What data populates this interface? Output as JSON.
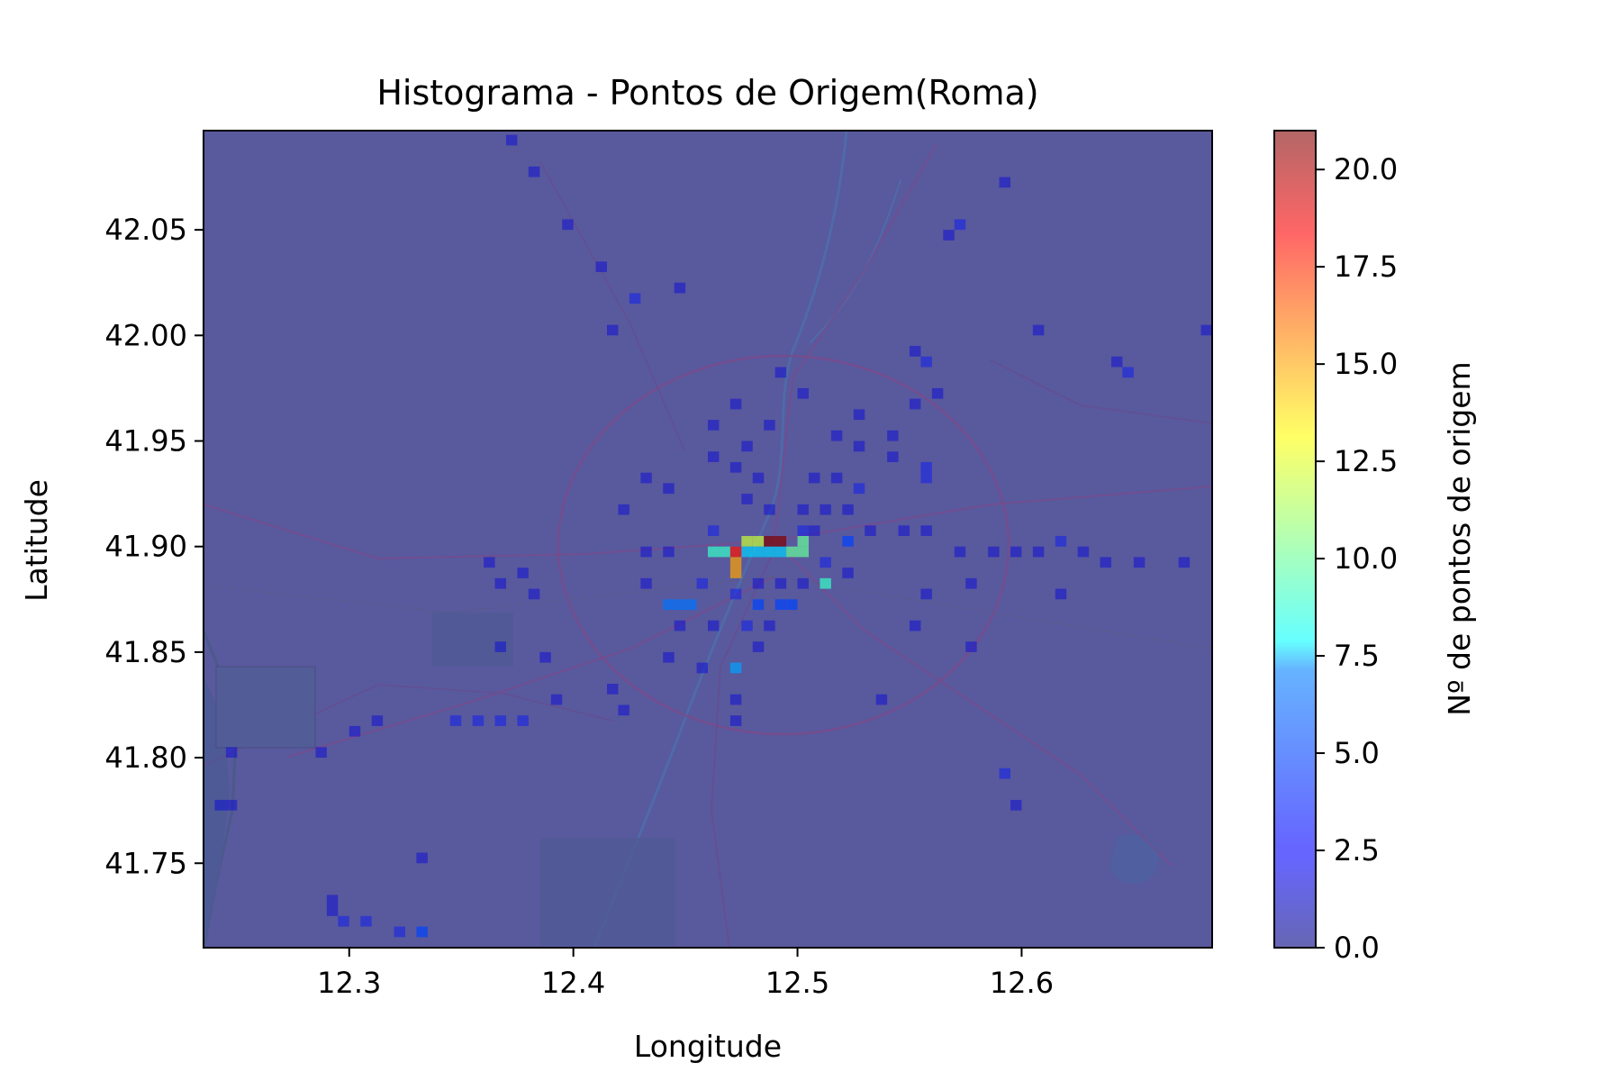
{
  "chart_data": {
    "type": "heatmap",
    "title": "Histograma - Pontos de Origem(Roma)",
    "xlabel": "Longitude",
    "ylabel": "Latitude",
    "xlim": [
      12.235,
      12.685
    ],
    "ylim": [
      41.71,
      42.097
    ],
    "x_ticks": [
      "12.3",
      "12.4",
      "12.5",
      "12.6"
    ],
    "y_ticks": [
      "41.75",
      "41.80",
      "41.85",
      "41.90",
      "41.95",
      "42.00",
      "42.05"
    ],
    "colorbar": {
      "label": "Nº de pontos de origem",
      "range": [
        0,
        21
      ],
      "ticks": [
        "0.0",
        "2.5",
        "5.0",
        "7.5",
        "10.0",
        "12.5",
        "15.0",
        "17.5",
        "20.0"
      ],
      "colormap": "jet"
    },
    "background": "map of Rome area",
    "grid": false,
    "bin_size": [
      0.005,
      0.005
    ],
    "cells": [
      [
        12.46,
        41.895,
        9
      ],
      [
        12.465,
        41.895,
        9
      ],
      [
        12.47,
        41.895,
        18
      ],
      [
        12.47,
        41.89,
        15
      ],
      [
        12.47,
        41.885,
        15
      ],
      [
        12.475,
        41.9,
        12
      ],
      [
        12.48,
        41.9,
        12
      ],
      [
        12.475,
        41.895,
        7
      ],
      [
        12.48,
        41.895,
        7
      ],
      [
        12.485,
        41.895,
        7
      ],
      [
        12.49,
        41.895,
        7
      ],
      [
        12.485,
        41.9,
        21
      ],
      [
        12.49,
        41.9,
        21
      ],
      [
        12.495,
        41.895,
        10
      ],
      [
        12.5,
        41.895,
        10
      ],
      [
        12.5,
        41.9,
        10
      ],
      [
        12.51,
        41.88,
        9
      ],
      [
        12.52,
        41.9,
        4
      ],
      [
        12.44,
        41.87,
        5
      ],
      [
        12.445,
        41.87,
        5
      ],
      [
        12.45,
        41.87,
        5
      ],
      [
        12.47,
        41.84,
        6
      ],
      [
        12.48,
        41.87,
        4
      ],
      [
        12.49,
        41.87,
        4
      ],
      [
        12.495,
        41.87,
        4
      ],
      [
        12.46,
        41.905,
        3
      ],
      [
        12.455,
        41.88,
        3
      ],
      [
        12.44,
        41.895,
        2
      ],
      [
        12.43,
        41.895,
        2
      ],
      [
        12.47,
        41.875,
        3
      ],
      [
        12.475,
        41.86,
        3
      ],
      [
        12.48,
        41.88,
        2
      ],
      [
        12.49,
        41.88,
        2
      ],
      [
        12.5,
        41.905,
        3
      ],
      [
        12.505,
        41.905,
        2
      ],
      [
        12.51,
        41.89,
        3
      ],
      [
        12.52,
        41.885,
        2
      ],
      [
        12.525,
        41.925,
        3
      ],
      [
        12.515,
        41.93,
        2
      ],
      [
        12.52,
        41.915,
        2
      ],
      [
        12.46,
        41.94,
        2
      ],
      [
        12.475,
        41.92,
        2
      ],
      [
        12.485,
        41.915,
        2
      ],
      [
        12.5,
        41.915,
        2
      ],
      [
        12.51,
        41.915,
        2
      ],
      [
        12.53,
        41.905,
        2
      ],
      [
        12.545,
        41.905,
        2
      ],
      [
        12.555,
        41.905,
        2
      ],
      [
        12.555,
        41.935,
        3
      ],
      [
        12.555,
        41.93,
        3
      ],
      [
        12.54,
        41.95,
        2
      ],
      [
        12.555,
        41.985,
        3
      ],
      [
        12.56,
        41.97,
        2
      ],
      [
        12.55,
        41.965,
        2
      ],
      [
        12.515,
        41.95,
        2
      ],
      [
        12.525,
        41.945,
        2
      ],
      [
        12.525,
        41.96,
        2
      ],
      [
        12.54,
        41.94,
        2
      ],
      [
        12.555,
        41.875,
        2
      ],
      [
        12.575,
        41.88,
        2
      ],
      [
        12.57,
        41.895,
        2
      ],
      [
        12.585,
        41.895,
        2
      ],
      [
        12.595,
        41.895,
        2
      ],
      [
        12.605,
        41.895,
        2
      ],
      [
        12.615,
        41.9,
        3
      ],
      [
        12.625,
        41.895,
        2
      ],
      [
        12.615,
        41.875,
        2
      ],
      [
        12.635,
        41.89,
        2
      ],
      [
        12.65,
        41.89,
        2
      ],
      [
        12.67,
        41.89,
        2
      ],
      [
        12.55,
        41.86,
        2
      ],
      [
        12.575,
        41.85,
        2
      ],
      [
        12.59,
        41.79,
        3
      ],
      [
        12.595,
        41.775,
        2
      ],
      [
        12.535,
        41.825,
        2
      ],
      [
        12.43,
        41.93,
        2
      ],
      [
        12.44,
        41.925,
        2
      ],
      [
        12.42,
        41.915,
        2
      ],
      [
        12.445,
        41.86,
        2
      ],
      [
        12.44,
        41.845,
        2
      ],
      [
        12.47,
        41.815,
        2
      ],
      [
        12.455,
        41.84,
        2
      ],
      [
        12.42,
        41.82,
        2
      ],
      [
        12.415,
        41.83,
        2
      ],
      [
        12.385,
        41.845,
        2
      ],
      [
        12.39,
        41.825,
        2
      ],
      [
        12.365,
        41.85,
        2
      ],
      [
        12.345,
        41.815,
        3
      ],
      [
        12.355,
        41.815,
        3
      ],
      [
        12.365,
        41.815,
        3
      ],
      [
        12.375,
        41.815,
        3
      ],
      [
        12.31,
        41.815,
        2
      ],
      [
        12.3,
        41.81,
        2
      ],
      [
        12.285,
        41.8,
        2
      ],
      [
        12.245,
        41.8,
        2
      ],
      [
        12.24,
        41.775,
        2
      ],
      [
        12.245,
        41.775,
        2
      ],
      [
        12.29,
        41.73,
        2
      ],
      [
        12.29,
        41.725,
        2
      ],
      [
        12.295,
        41.72,
        3
      ],
      [
        12.305,
        41.72,
        3
      ],
      [
        12.32,
        41.715,
        3
      ],
      [
        12.33,
        41.715,
        4
      ],
      [
        12.36,
        41.89,
        2
      ],
      [
        12.365,
        41.88,
        2
      ],
      [
        12.38,
        41.875,
        2
      ],
      [
        12.375,
        41.885,
        2
      ],
      [
        12.33,
        41.75,
        2
      ],
      [
        12.415,
        42.0,
        2
      ],
      [
        12.425,
        42.015,
        3
      ],
      [
        12.445,
        42.02,
        2
      ],
      [
        12.395,
        42.05,
        2
      ],
      [
        12.38,
        42.075,
        2
      ],
      [
        12.37,
        42.09,
        2
      ],
      [
        12.41,
        42.03,
        2
      ],
      [
        12.59,
        42.07,
        2
      ],
      [
        12.57,
        42.05,
        3
      ],
      [
        12.565,
        42.045,
        2
      ],
      [
        12.605,
        42.0,
        2
      ],
      [
        12.64,
        41.985,
        2
      ],
      [
        12.645,
        41.98,
        3
      ],
      [
        12.68,
        42.0,
        2
      ],
      [
        12.55,
        41.99,
        2
      ],
      [
        12.49,
        41.98,
        2
      ],
      [
        12.5,
        41.97,
        2
      ],
      [
        12.47,
        41.965,
        2
      ],
      [
        12.485,
        41.955,
        2
      ],
      [
        12.46,
        41.955,
        2
      ],
      [
        12.505,
        41.93,
        2
      ],
      [
        12.47,
        41.935,
        2
      ],
      [
        12.475,
        41.945,
        2
      ],
      [
        12.48,
        41.93,
        2
      ],
      [
        12.5,
        41.88,
        2
      ],
      [
        12.485,
        41.86,
        2
      ],
      [
        12.46,
        41.86,
        2
      ],
      [
        12.48,
        41.85,
        2
      ],
      [
        12.47,
        41.825,
        2
      ],
      [
        12.43,
        41.88,
        2
      ]
    ]
  }
}
